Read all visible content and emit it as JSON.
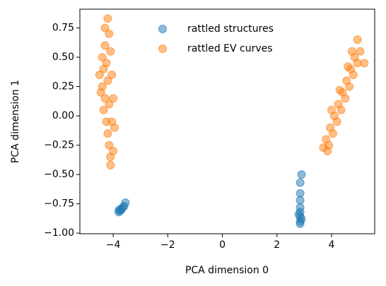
{
  "chart_data": {
    "type": "scatter",
    "xlabel": "PCA dimension 0",
    "ylabel": "PCA dimension 1",
    "xlim": [
      -5.22,
      5.58
    ],
    "ylim": [
      -1.005,
      0.91
    ],
    "xticks": [
      {
        "value": -4,
        "label": "−4"
      },
      {
        "value": -2,
        "label": "−2"
      },
      0,
      2,
      4
    ],
    "yticks": [
      {
        "value": -1,
        "label": "−1.00"
      },
      {
        "value": -0.75,
        "label": "−0.75"
      },
      {
        "value": -0.5,
        "label": "−0.50"
      },
      {
        "value": -0.25,
        "label": "−0.25"
      },
      {
        "value": 0,
        "label": "0.00"
      },
      {
        "value": 0.25,
        "label": "0.25"
      },
      {
        "value": 0.5,
        "label": "0.50"
      },
      0.75
    ],
    "legend": "upper center",
    "series": [
      {
        "name": "rattled structures",
        "color": "#1f77b4",
        "x": [
          -3.8,
          -3.75,
          -3.7,
          -3.65,
          -3.6,
          -3.55,
          -3.78,
          2.9,
          2.85,
          2.85,
          2.85,
          2.85,
          2.85,
          2.85,
          2.85,
          2.85,
          2.9,
          2.8
        ],
        "y": [
          -0.82,
          -0.81,
          -0.8,
          -0.78,
          -0.77,
          -0.74,
          -0.8,
          -0.5,
          -0.57,
          -0.66,
          -0.72,
          -0.78,
          -0.82,
          -0.86,
          -0.9,
          -0.92,
          -0.88,
          -0.84
        ]
      },
      {
        "name": "rattled EV curves",
        "color": "#ff7f0e",
        "x": [
          -4.2,
          -4.4,
          -4.3,
          -4.15,
          -4.35,
          -4.5,
          -4.25,
          -4.1,
          -4.4,
          -4.2,
          -4.3,
          -4.05,
          -4.35,
          -4.15,
          -4.25,
          -4.0,
          -4.2,
          -4.05,
          -4.15,
          -3.95,
          -4.1,
          -4.0,
          -4.1,
          -4.3,
          -4.45,
          3.7,
          3.8,
          3.9,
          3.95,
          4.05,
          4.1,
          4.2,
          4.25,
          4.35,
          4.4,
          4.5,
          4.55,
          4.65,
          4.7,
          4.8,
          4.85,
          4.95,
          4.95,
          5.05,
          5.2,
          4.6,
          4.0,
          3.85,
          4.3,
          4.75
        ],
        "y": [
          0.83,
          0.5,
          0.6,
          0.7,
          0.4,
          0.35,
          0.45,
          0.55,
          0.25,
          0.3,
          0.15,
          0.35,
          0.05,
          0.1,
          -0.05,
          0.15,
          -0.15,
          -0.05,
          -0.25,
          -0.1,
          -0.35,
          -0.3,
          -0.42,
          0.75,
          0.2,
          -0.27,
          -0.2,
          -0.25,
          -0.1,
          -0.15,
          0.0,
          -0.05,
          0.1,
          0.05,
          0.2,
          0.15,
          0.3,
          0.25,
          0.4,
          0.35,
          0.5,
          0.45,
          0.65,
          0.55,
          0.45,
          0.42,
          0.05,
          -0.3,
          0.22,
          0.55
        ]
      }
    ]
  }
}
